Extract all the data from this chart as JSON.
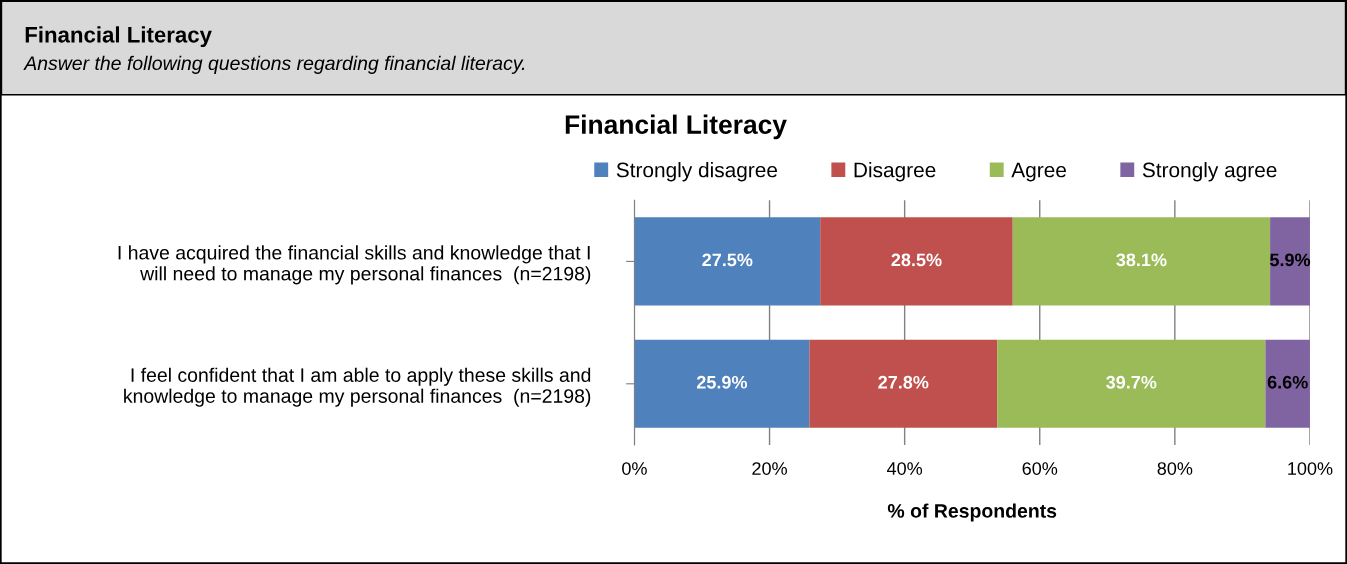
{
  "chart_data": {
    "type": "bar",
    "orientation": "horizontal",
    "stacked": true,
    "title": "Financial Literacy",
    "xlabel": "% of Respondents",
    "annotations": [
      "Financial Literacy",
      "Answer the following questions regarding financial literacy."
    ],
    "categories": [
      "I have acquired the financial skills and knowledge that I\nwill need to manage my personal finances  (n=2198)",
      "I feel confident that I am able to apply these skills and\nknowledge to manage my personal finances  (n=2198)"
    ],
    "series": [
      {
        "name": "Strongly disagree",
        "color": "#4f81bd",
        "values": [
          27.5,
          25.9
        ],
        "value_labels": [
          "27.5%",
          "25.9%"
        ]
      },
      {
        "name": "Disagree",
        "color": "#c0504d",
        "values": [
          28.5,
          27.8
        ],
        "value_labels": [
          "28.5%",
          "27.8%"
        ]
      },
      {
        "name": "Agree",
        "color": "#9bbb59",
        "values": [
          38.1,
          39.7
        ],
        "value_labels": [
          "38.1%",
          "39.7%"
        ]
      },
      {
        "name": "Strongly agree",
        "color": "#8064a2",
        "values": [
          5.9,
          6.6
        ],
        "value_labels": [
          "5.9%",
          "6.6%"
        ]
      }
    ],
    "xlim": [
      0,
      100
    ],
    "xticks": [
      {
        "value": 0,
        "label": "0%"
      },
      {
        "value": 20,
        "label": "20%"
      },
      {
        "value": 40,
        "label": "40%"
      },
      {
        "value": 60,
        "label": "60%"
      },
      {
        "value": 80,
        "label": "80%"
      },
      {
        "value": 100,
        "label": "100%"
      }
    ],
    "grid": "x",
    "legend": "top"
  }
}
